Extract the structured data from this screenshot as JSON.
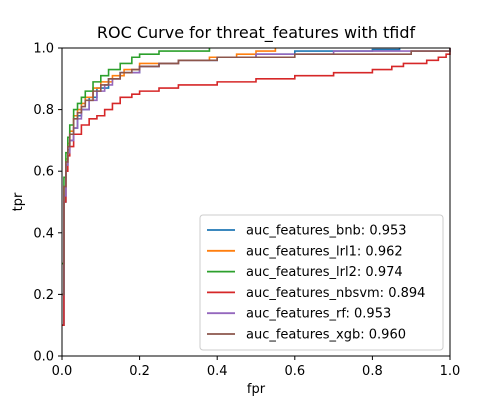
{
  "chart_data": {
    "type": "line",
    "title": "ROC Curve for threat_features with tfidf",
    "xlabel": "fpr",
    "ylabel": "tpr",
    "xlim": [
      0,
      1
    ],
    "ylim": [
      0,
      1
    ],
    "xticks": [
      "0.0",
      "0.2",
      "0.4",
      "0.6",
      "0.8",
      "1.0"
    ],
    "yticks": [
      "0.0",
      "0.2",
      "0.4",
      "0.6",
      "0.8",
      "1.0"
    ],
    "grid": false,
    "legend_position": "lower-right",
    "series": [
      {
        "name": "auc_features_bnb: 0.953",
        "color": "#1f77b4",
        "x": [
          0,
          0.005,
          0.01,
          0.015,
          0.02,
          0.03,
          0.04,
          0.05,
          0.07,
          0.09,
          0.12,
          0.15,
          0.2,
          0.25,
          0.3,
          0.4,
          0.5,
          0.6,
          0.7,
          0.8,
          0.87
        ],
        "y": [
          0.1,
          0.5,
          0.62,
          0.67,
          0.7,
          0.74,
          0.78,
          0.8,
          0.84,
          0.87,
          0.9,
          0.92,
          0.94,
          0.95,
          0.96,
          0.97,
          0.98,
          0.99,
          0.99,
          0.995,
          1.0
        ]
      },
      {
        "name": "auc_features_lrl1: 0.962",
        "color": "#ff7f0e",
        "x": [
          0,
          0.005,
          0.01,
          0.015,
          0.02,
          0.03,
          0.04,
          0.05,
          0.06,
          0.08,
          0.1,
          0.13,
          0.16,
          0.2,
          0.25,
          0.3,
          0.35,
          0.38,
          0.45,
          0.5,
          0.55
        ],
        "y": [
          0.3,
          0.55,
          0.64,
          0.69,
          0.73,
          0.78,
          0.8,
          0.82,
          0.84,
          0.87,
          0.89,
          0.91,
          0.93,
          0.95,
          0.95,
          0.96,
          0.96,
          0.97,
          0.98,
          0.99,
          1.0
        ]
      },
      {
        "name": "auc_features_lrl2: 0.974",
        "color": "#2ca02c",
        "x": [
          0,
          0.005,
          0.01,
          0.015,
          0.02,
          0.03,
          0.04,
          0.05,
          0.06,
          0.08,
          0.1,
          0.12,
          0.15,
          0.18,
          0.2,
          0.25,
          0.3,
          0.35,
          0.38
        ],
        "y": [
          0.3,
          0.58,
          0.66,
          0.71,
          0.75,
          0.8,
          0.82,
          0.84,
          0.86,
          0.89,
          0.91,
          0.93,
          0.95,
          0.97,
          0.98,
          0.99,
          0.99,
          0.99,
          1.0
        ]
      },
      {
        "name": "auc_features_nbsvm: 0.894",
        "color": "#d62728",
        "x": [
          0,
          0.005,
          0.01,
          0.015,
          0.02,
          0.03,
          0.05,
          0.07,
          0.09,
          0.11,
          0.13,
          0.15,
          0.18,
          0.2,
          0.25,
          0.3,
          0.4,
          0.5,
          0.6,
          0.7,
          0.75,
          0.8,
          0.85,
          0.88,
          0.9,
          0.94,
          0.97,
          0.99,
          1.0
        ],
        "y": [
          0.1,
          0.5,
          0.6,
          0.65,
          0.68,
          0.72,
          0.75,
          0.77,
          0.78,
          0.8,
          0.82,
          0.84,
          0.85,
          0.86,
          0.87,
          0.88,
          0.89,
          0.9,
          0.91,
          0.92,
          0.92,
          0.93,
          0.94,
          0.95,
          0.95,
          0.96,
          0.97,
          0.98,
          1.0
        ]
      },
      {
        "name": "auc_features_rf: 0.953",
        "color": "#9467bd",
        "x": [
          0,
          0.005,
          0.01,
          0.015,
          0.02,
          0.03,
          0.04,
          0.05,
          0.07,
          0.09,
          0.11,
          0.13,
          0.15,
          0.2,
          0.25,
          0.3,
          0.35,
          0.4,
          0.5,
          0.6,
          0.7,
          0.8,
          0.9,
          1.0
        ],
        "y": [
          0.2,
          0.52,
          0.62,
          0.66,
          0.7,
          0.74,
          0.77,
          0.8,
          0.83,
          0.86,
          0.88,
          0.9,
          0.92,
          0.94,
          0.95,
          0.96,
          0.96,
          0.97,
          0.98,
          0.98,
          0.99,
          0.99,
          0.99,
          1.0
        ]
      },
      {
        "name": "auc_features_xgb: 0.960",
        "color": "#8c564b",
        "x": [
          0,
          0.005,
          0.01,
          0.015,
          0.02,
          0.03,
          0.04,
          0.05,
          0.06,
          0.08,
          0.1,
          0.12,
          0.15,
          0.18,
          0.2,
          0.25,
          0.3,
          0.4,
          0.5,
          0.6,
          0.7,
          0.8,
          0.9,
          0.97,
          1.0
        ],
        "y": [
          0.2,
          0.55,
          0.63,
          0.68,
          0.72,
          0.77,
          0.79,
          0.81,
          0.83,
          0.86,
          0.88,
          0.9,
          0.92,
          0.93,
          0.94,
          0.95,
          0.96,
          0.97,
          0.97,
          0.98,
          0.98,
          0.98,
          0.99,
          0.99,
          1.0
        ]
      }
    ]
  }
}
